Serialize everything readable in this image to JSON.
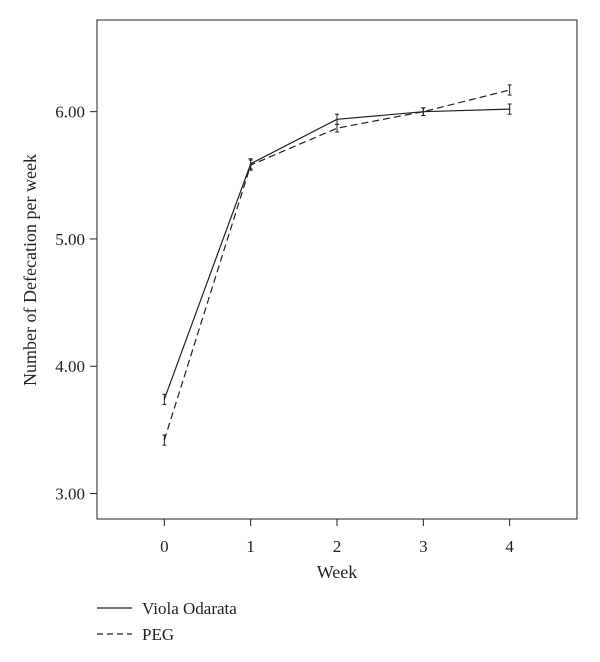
{
  "chart_data": {
    "type": "line",
    "title": "",
    "xlabel": "Week",
    "ylabel": "Number of Defecation per week",
    "xlim": [
      -0.78,
      4.78
    ],
    "ylim": [
      2.8,
      6.72
    ],
    "x": [
      0,
      1,
      2,
      3,
      4
    ],
    "xticks": [
      {
        "value": 0,
        "label": "0"
      },
      {
        "value": 1,
        "label": "1"
      },
      {
        "value": 2,
        "label": "2"
      },
      {
        "value": 3,
        "label": "3"
      },
      {
        "value": 4,
        "label": "4"
      }
    ],
    "yticks": [
      {
        "value": 3.0,
        "label": "3.00"
      },
      {
        "value": 4.0,
        "label": "4.00"
      },
      {
        "value": 5.0,
        "label": "5.00"
      },
      {
        "value": 6.0,
        "label": "6.00"
      }
    ],
    "grid": false,
    "legend_position": "bottom-left",
    "series": [
      {
        "name": "Viola Odarata",
        "line_style": "solid",
        "color": "#231f20",
        "values": [
          3.74,
          5.59,
          5.94,
          6.0,
          6.02
        ],
        "error": [
          0.04,
          0.04,
          0.04,
          0.03,
          0.04
        ]
      },
      {
        "name": "PEG",
        "line_style": "dashed",
        "color": "#231f20",
        "values": [
          3.42,
          5.58,
          5.87,
          6.0,
          6.17
        ],
        "error": [
          0.04,
          0.04,
          0.03,
          0.03,
          0.04
        ]
      }
    ]
  }
}
